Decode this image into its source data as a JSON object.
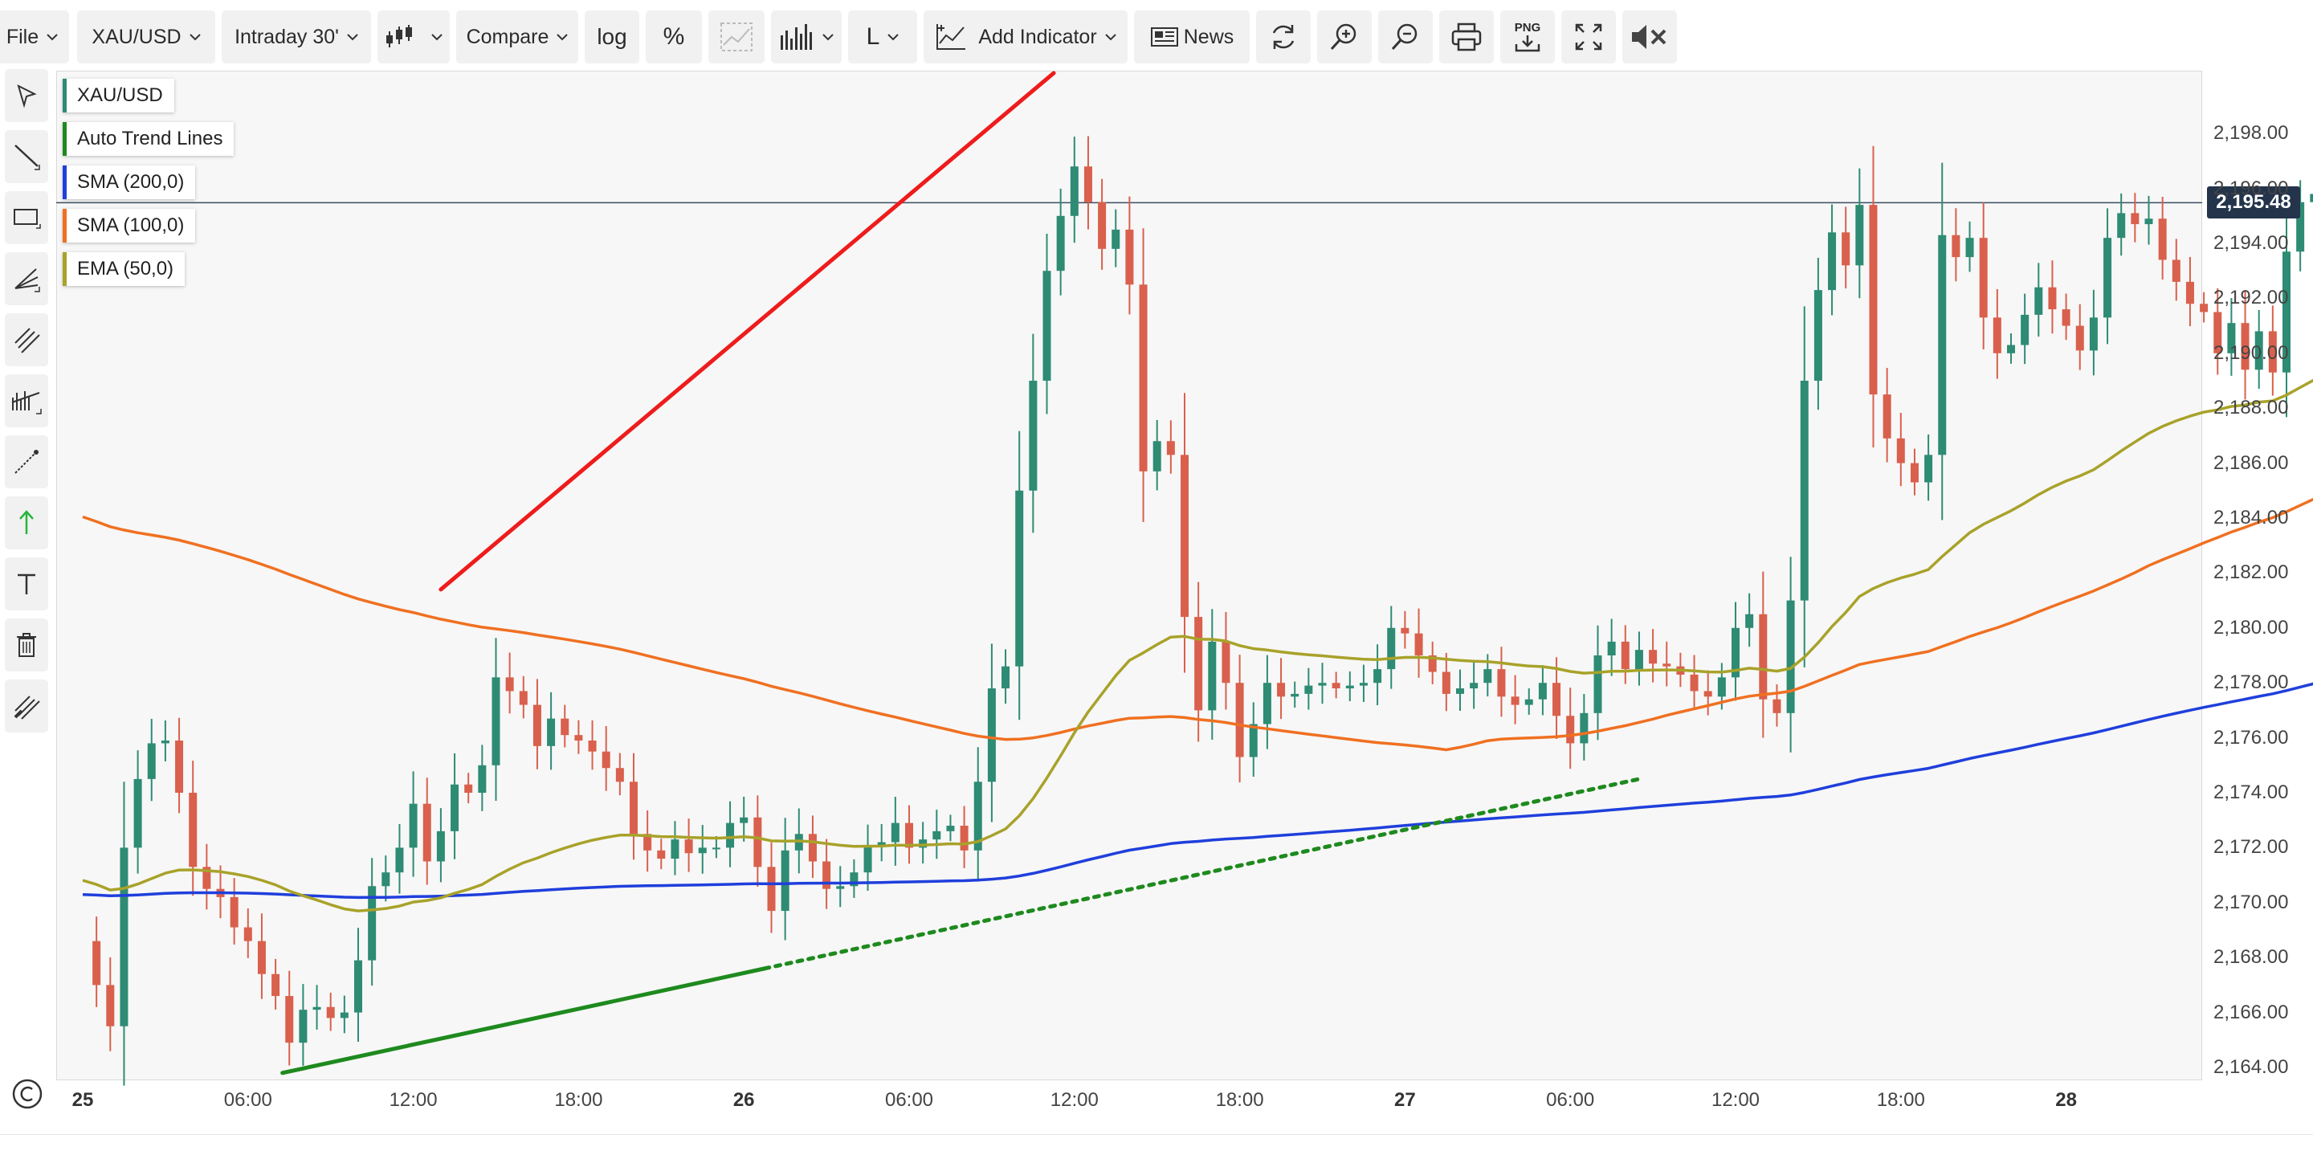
{
  "toolbar": {
    "file": "File",
    "symbol": "XAU/USD",
    "interval": "Intraday 30'",
    "compare": "Compare",
    "log": "log",
    "percent": "%",
    "line_type": "L",
    "add_indicator": "Add Indicator",
    "news": "News",
    "png": "PNG"
  },
  "legend": [
    {
      "label": "XAU/USD",
      "color": "#2e8b74"
    },
    {
      "label": "Auto Trend Lines",
      "color": "#1e8a1e"
    },
    {
      "label": "SMA (200,0)",
      "color": "#1f3fdc"
    },
    {
      "label": "SMA (100,0)",
      "color": "#f07021"
    },
    {
      "label": "EMA (50,0)",
      "color": "#a8a22a"
    }
  ],
  "price_tag": "2,195.48",
  "chart_data": {
    "type": "candlestick",
    "symbol": "XAU/USD",
    "interval": "30 minutes",
    "last_price": 2195.48,
    "ylim": [
      2163,
      2200.5
    ],
    "y_ticks": [
      2164,
      2166,
      2168,
      2170,
      2172,
      2174,
      2176,
      2178,
      2180,
      2182,
      2184,
      2186,
      2188,
      2190,
      2192,
      2194,
      2196,
      2198
    ],
    "y_tick_labels": [
      "2,164.00",
      "2,166.00",
      "2,168.00",
      "2,170.00",
      "2,172.00",
      "2,174.00",
      "2,176.00",
      "2,178.00",
      "2,180.00",
      "2,182.00",
      "2,184.00",
      "2,186.00",
      "2,188.00",
      "2,190.00",
      "2,192.00",
      "2,194.00",
      "2,196.00",
      "2,198.00"
    ],
    "x_ticks": [
      {
        "t": 0,
        "label": "25",
        "day": true
      },
      {
        "t": 12,
        "label": "06:00"
      },
      {
        "t": 24,
        "label": "12:00"
      },
      {
        "t": 36,
        "label": "18:00"
      },
      {
        "t": 48,
        "label": "26",
        "day": true
      },
      {
        "t": 60,
        "label": "06:00"
      },
      {
        "t": 72,
        "label": "12:00"
      },
      {
        "t": 84,
        "label": "18:00"
      },
      {
        "t": 96,
        "label": "27",
        "day": true
      },
      {
        "t": 108,
        "label": "06:00"
      },
      {
        "t": 120,
        "label": "12:00"
      },
      {
        "t": 132,
        "label": "18:00"
      },
      {
        "t": 144,
        "label": "28",
        "day": true
      }
    ],
    "colors": {
      "up": "#2e8b74",
      "down": "#d9604c",
      "sma200": "#1f3fdc",
      "sma100": "#f07021",
      "ema50": "#a8a22a",
      "trend_up": "#1e8a1e",
      "trend_red": "#ee1c1c"
    },
    "closes": [
      2168.6,
      2167.0,
      2165.5,
      2172.0,
      2174.5,
      2175.8,
      2175.9,
      2174.0,
      2171.3,
      2170.5,
      2170.2,
      2169.1,
      2168.6,
      2167.4,
      2166.6,
      2164.9,
      2166.1,
      2166.2,
      2165.8,
      2166.0,
      2167.9,
      2170.6,
      2171.1,
      2172.0,
      2173.6,
      2171.5,
      2172.6,
      2174.3,
      2174.0,
      2175.0,
      2178.2,
      2177.7,
      2177.2,
      2175.7,
      2176.7,
      2176.1,
      2175.9,
      2175.5,
      2174.9,
      2174.4,
      2172.5,
      2171.9,
      2171.6,
      2172.3,
      2171.8,
      2172.0,
      2172.0,
      2172.9,
      2173.1,
      2171.3,
      2169.7,
      2171.9,
      2172.5,
      2171.5,
      2170.5,
      2170.6,
      2171.1,
      2172.1,
      2172.2,
      2172.9,
      2172.0,
      2172.3,
      2172.6,
      2172.8,
      2171.9,
      2174.4,
      2177.8,
      2178.6,
      2185.0,
      2189.0,
      2193.0,
      2195.0,
      2196.8,
      2195.5,
      2193.8,
      2194.5,
      2192.5,
      2185.7,
      2186.8,
      2186.3,
      2180.4,
      2177.0,
      2179.5,
      2178.0,
      2175.3,
      2176.5,
      2178.0,
      2177.5,
      2177.6,
      2177.9,
      2178.0,
      2177.8,
      2177.9,
      2178.0,
      2178.5,
      2180.0,
      2179.8,
      2179.0,
      2178.4,
      2177.6,
      2177.8,
      2178.0,
      2178.5,
      2177.5,
      2177.2,
      2177.4,
      2178.0,
      2176.8,
      2175.8,
      2176.9,
      2179.0,
      2179.5,
      2178.5,
      2179.2,
      2178.7,
      2178.6,
      2178.3,
      2177.7,
      2177.5,
      2178.2,
      2180.0,
      2180.5,
      2177.4,
      2176.9,
      2181.0,
      2189.0,
      2192.3,
      2194.4,
      2193.2,
      2195.4,
      2188.5,
      2186.9,
      2186.0,
      2185.3,
      2186.3,
      2194.3,
      2193.5,
      2194.2,
      2191.3,
      2190.0,
      2190.3,
      2191.4,
      2192.4,
      2191.6,
      2191.0,
      2190.1,
      2191.3,
      2194.2,
      2195.1,
      2194.7,
      2194.9,
      2193.4,
      2192.6,
      2191.8,
      2191.5,
      2190.0,
      2191.1,
      2189.4,
      2190.8,
      2189.3,
      2193.7,
      2195.5,
      2195.8,
      2195.0,
      2195.8,
      2196.0,
      2195.5
    ]
  }
}
